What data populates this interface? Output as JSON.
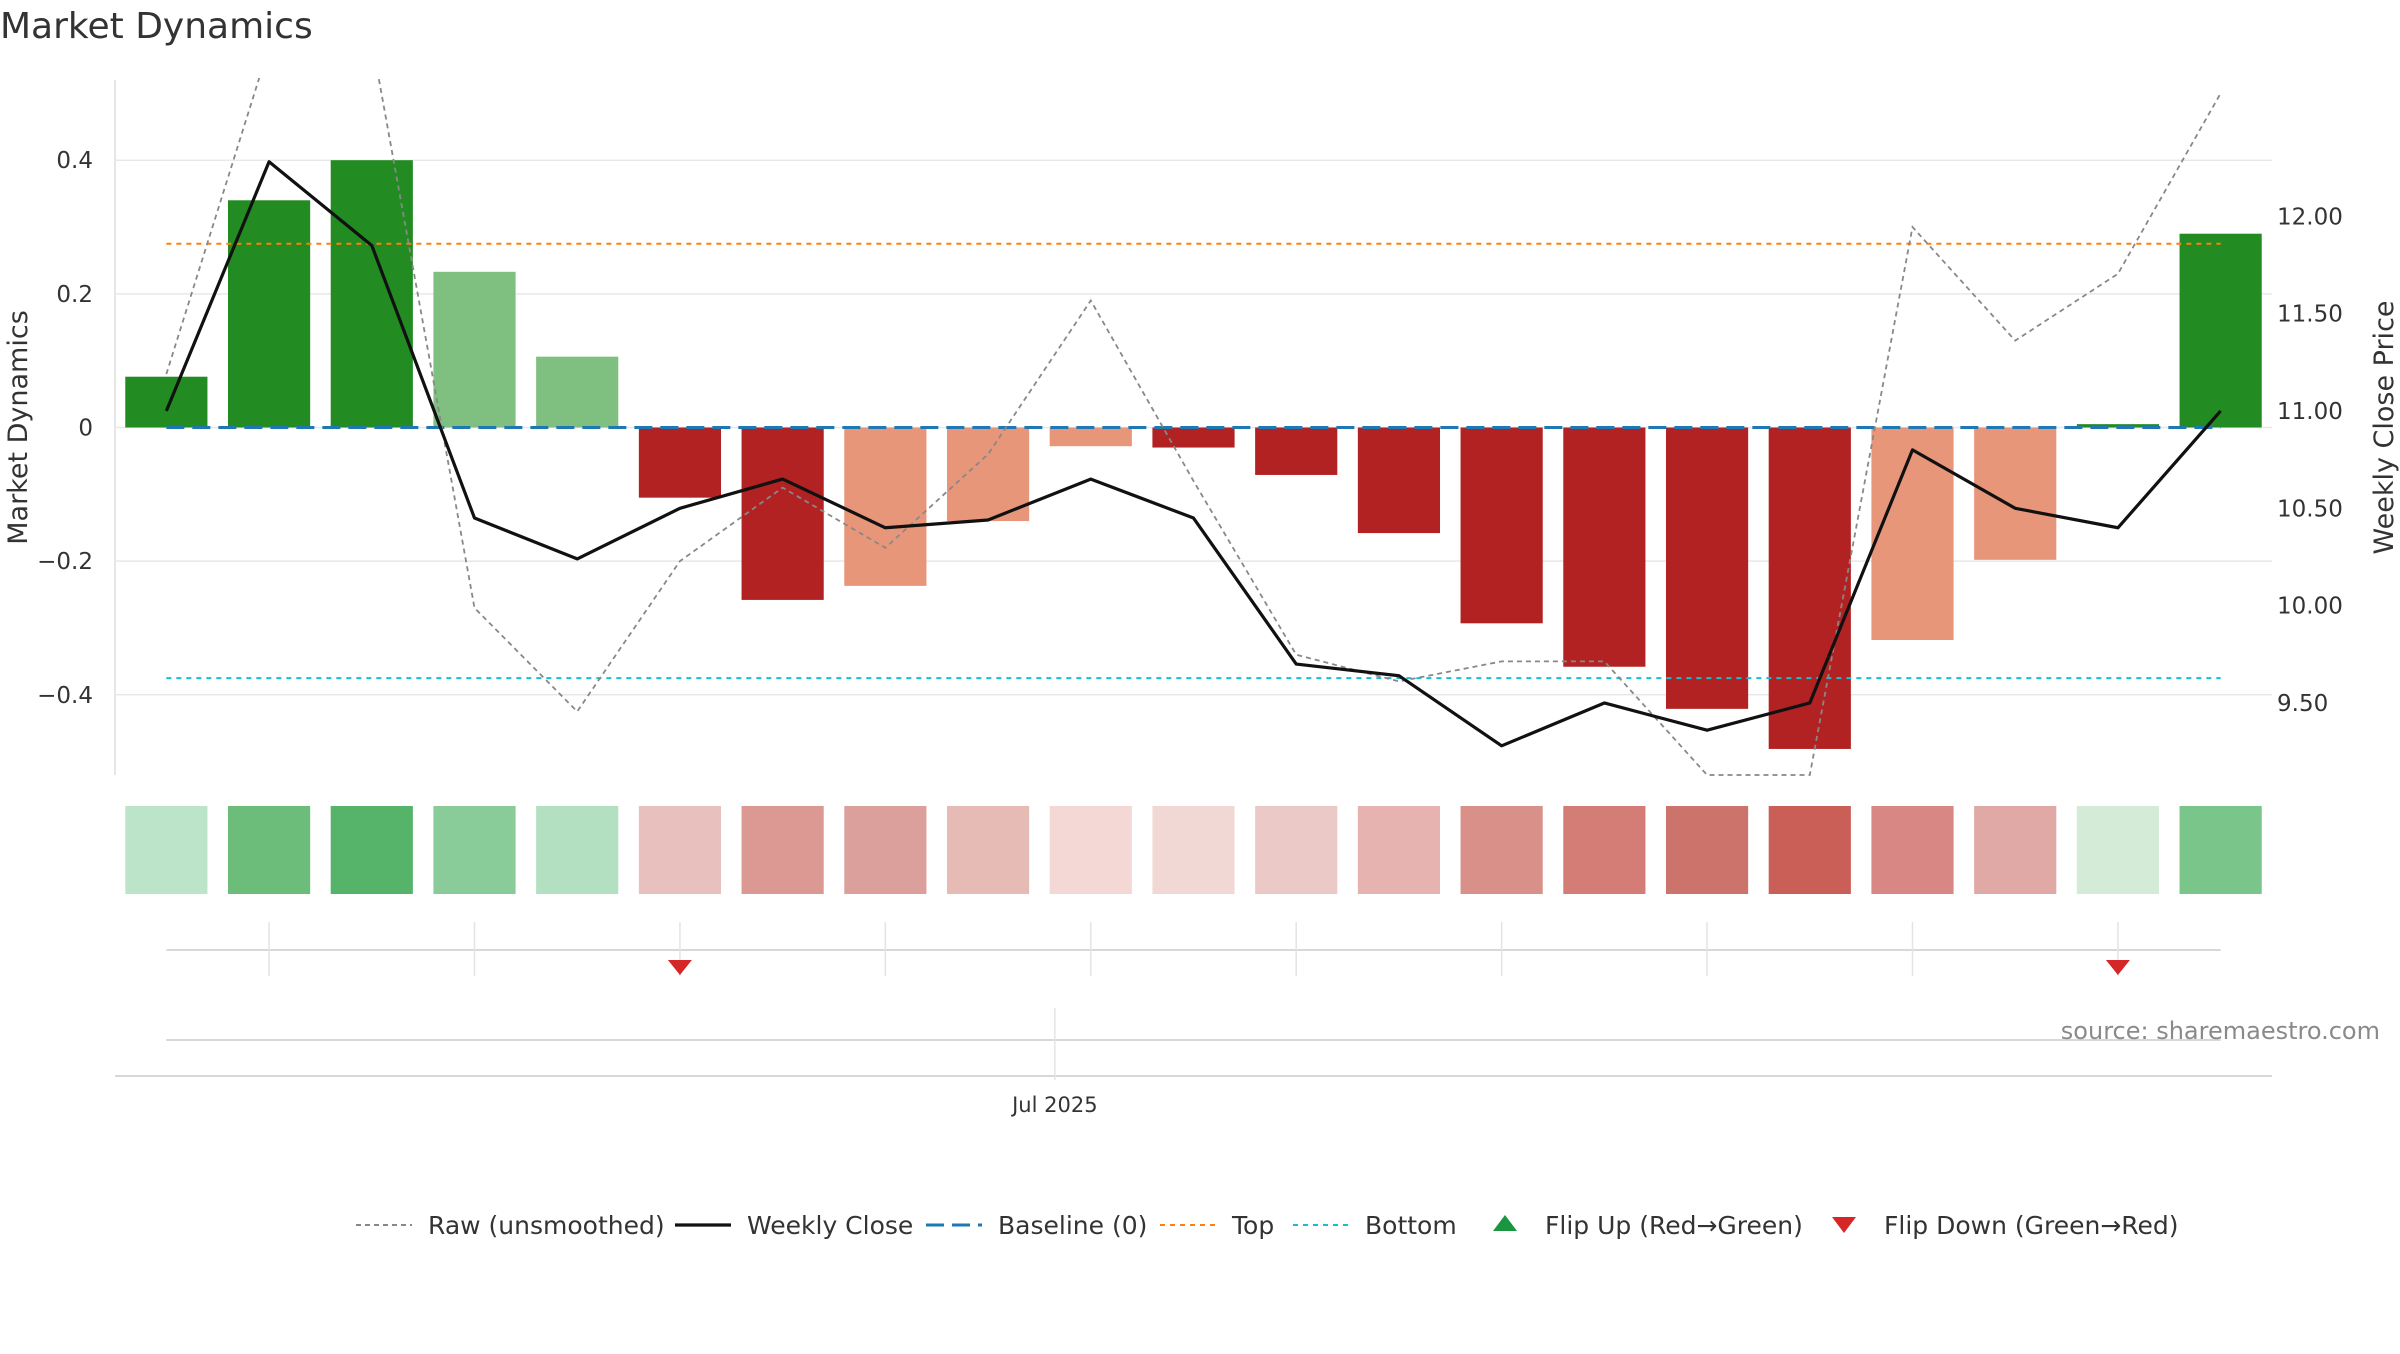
{
  "title": "Market Dynamics",
  "source": "source: sharemaestro.com",
  "colors": {
    "strong_green": "#228b22",
    "light_green": "#7fbf7f",
    "strong_red": "#b22222",
    "light_red": "#e8967a",
    "close_line": "#111111",
    "raw_line": "#888888",
    "baseline": "#1f77b4",
    "top": "#ff7f0e",
    "bottom": "#17becf",
    "flip_up": "#1a9641",
    "flip_down": "#d62728",
    "grid": "#e8e8e8",
    "axis_text": "#333333"
  },
  "chart_data": {
    "type": "bar",
    "title": "Market Dynamics",
    "ylabel": "Market Dynamics",
    "y2label": "Weekly Close Price",
    "ylim": [
      -0.52,
      0.52
    ],
    "y2lim": [
      9.13,
      12.7
    ],
    "yticks": [
      0.4,
      0.2,
      0,
      -0.2,
      -0.4
    ],
    "ytick_labels": [
      "0.4",
      "0.2",
      "0",
      "−0.2",
      "−0.4"
    ],
    "y2ticks": [
      12.0,
      11.5,
      11.0,
      10.5,
      10.0,
      9.5
    ],
    "y2tick_labels": [
      "12.00",
      "11.50",
      "11.00",
      "10.50",
      "10.00",
      "9.50"
    ],
    "xtick_label": "Jul 2025",
    "xtick_index": 9.15,
    "grid": true,
    "legend_position": "bottom-center",
    "bars": {
      "values": [
        0.076,
        0.34,
        0.4,
        0.233,
        0.106,
        -0.105,
        -0.258,
        -0.237,
        -0.14,
        -0.028,
        -0.03,
        -0.071,
        -0.158,
        -0.293,
        -0.358,
        -0.421,
        -0.481,
        -0.318,
        -0.198,
        0.005,
        0.29
      ],
      "strength": [
        "strong",
        "strong",
        "strong",
        "weak",
        "weak",
        "strong",
        "strong",
        "weak",
        "weak",
        "weak",
        "strong",
        "strong",
        "strong",
        "strong",
        "strong",
        "strong",
        "strong",
        "weak",
        "weak",
        "strong",
        "strong"
      ]
    },
    "series": [
      {
        "name": "Weekly Close",
        "values": [
          11.0,
          12.28,
          11.85,
          10.45,
          10.24,
          10.5,
          10.65,
          10.4,
          10.44,
          10.65,
          10.45,
          9.7,
          9.64,
          9.28,
          9.5,
          9.36,
          9.5,
          10.8,
          10.5,
          10.4,
          11.0
        ]
      },
      {
        "name": "Raw (unsmoothed)",
        "values": [
          0.08,
          0.57,
          0.58,
          -0.27,
          -0.425,
          -0.2,
          -0.09,
          -0.18,
          -0.04,
          0.19,
          -0.08,
          -0.34,
          -0.38,
          -0.35,
          -0.35,
          -0.52,
          -0.52,
          0.3,
          0.13,
          0.23,
          0.5
        ]
      }
    ],
    "lines": {
      "baseline": 0,
      "top": 0.275,
      "bottom": -0.375
    },
    "heat_strip": [
      "#bce4c8",
      "#6cbd7a",
      "#56b36a",
      "#8acb9a",
      "#b3e0c0",
      "#e8c0bd",
      "#dc9994",
      "#dca09c",
      "#e6bbb6",
      "#f3d8d5",
      "#f2d8d5",
      "#ebc9c7",
      "#e7b3b0",
      "#d99089",
      "#d47c76",
      "#cc736b",
      "#c95f56",
      "#d98784",
      "#e0a9a6",
      "#d4ebd7",
      "#7ac58a"
    ],
    "flips": [
      {
        "type": "Flip Down (Green→Red)",
        "index": 5
      },
      {
        "type": "Flip Up (Red→Green)",
        "index": 19
      }
    ],
    "legend": [
      "Raw (unsmoothed)",
      "Weekly Close",
      "Baseline (0)",
      "Top",
      "Bottom",
      "Flip Up (Red→Green)",
      "Flip Down (Green→Red)"
    ]
  }
}
